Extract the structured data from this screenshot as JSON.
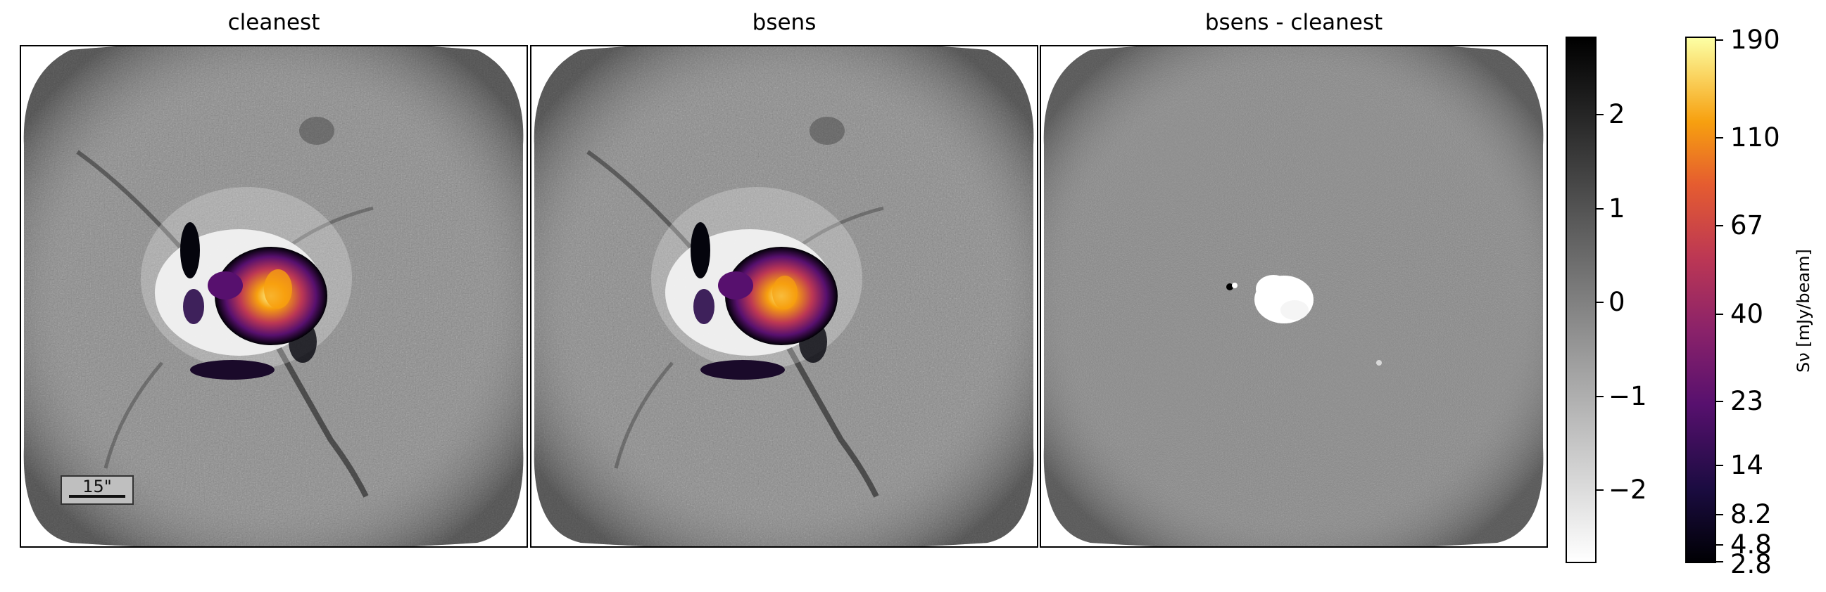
{
  "panels": [
    {
      "title": "cleanest"
    },
    {
      "title": "bsens"
    },
    {
      "title": "bsens - cleanest"
    }
  ],
  "scalebar_label": "15\"",
  "colorbars": {
    "difference": {
      "ticks": [
        "2",
        "1",
        "0",
        "−1",
        "−2"
      ],
      "colormap": "grayscale (black=positive, white=negative)"
    },
    "flux": {
      "ticks": [
        "190",
        "110",
        "67",
        "40",
        "23",
        "14",
        "8.2",
        "4.8",
        "2.8"
      ],
      "label": "Sν [mJy/beam]",
      "colormap": "inferno"
    }
  },
  "colors": {
    "inferno_low": "#000004",
    "inferno_mid": "#bc3754",
    "inferno_high": "#fcffa4"
  }
}
